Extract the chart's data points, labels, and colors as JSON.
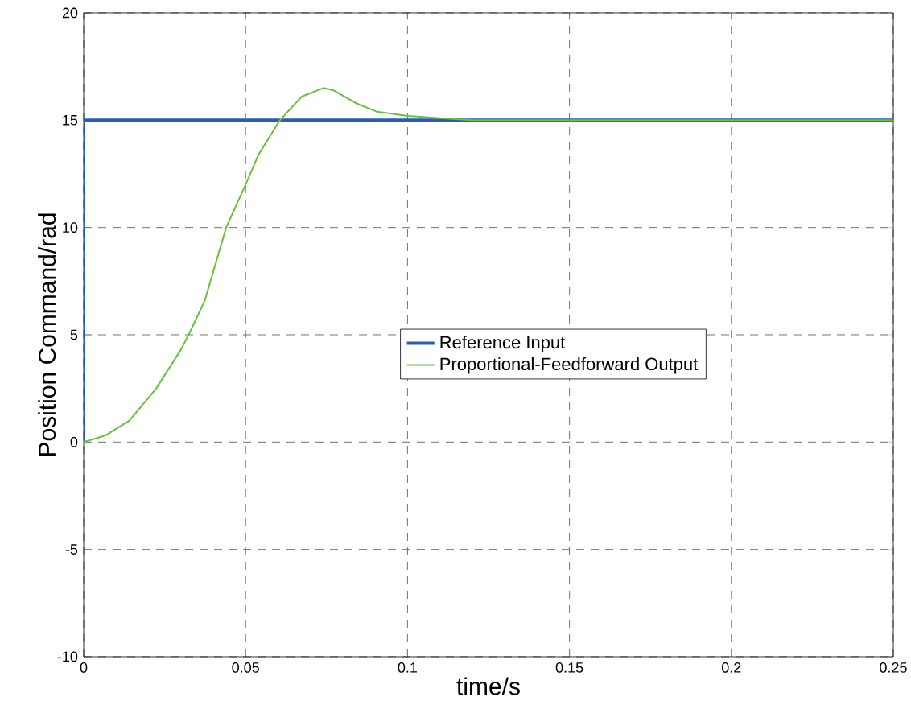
{
  "chart_data": {
    "type": "line",
    "xlabel": "time/s",
    "ylabel": "Position Command/rad",
    "xlim": [
      0,
      0.25
    ],
    "ylim": [
      -10,
      20
    ],
    "xticks": [
      0,
      0.05,
      0.1,
      0.15,
      0.2,
      0.25
    ],
    "yticks": [
      -10,
      -5,
      0,
      5,
      10,
      15,
      20
    ],
    "grid": true,
    "legend": "center",
    "line_style": "solid",
    "marker": "none",
    "series": [
      {
        "name": "Reference Input",
        "color": "#2a5db0",
        "x": [
          0,
          0,
          0.25
        ],
        "values": [
          0,
          15,
          15
        ]
      },
      {
        "name": "Proportional-Feedforward Output",
        "color": "#66c23a",
        "x": [
          0,
          0.0066,
          0.0141,
          0.0224,
          0.03,
          0.0324,
          0.0374,
          0.044,
          0.05,
          0.054,
          0.0606,
          0.0673,
          0.074,
          0.077,
          0.084,
          0.0905,
          0.1,
          0.11,
          0.12,
          0.25
        ],
        "values": [
          0,
          0.3,
          1.0,
          2.5,
          4.3,
          5.0,
          6.6,
          10.0,
          12.0,
          13.4,
          15.0,
          16.1,
          16.5,
          16.4,
          15.8,
          15.4,
          15.2,
          15.1,
          15.0,
          15.0
        ]
      }
    ]
  }
}
